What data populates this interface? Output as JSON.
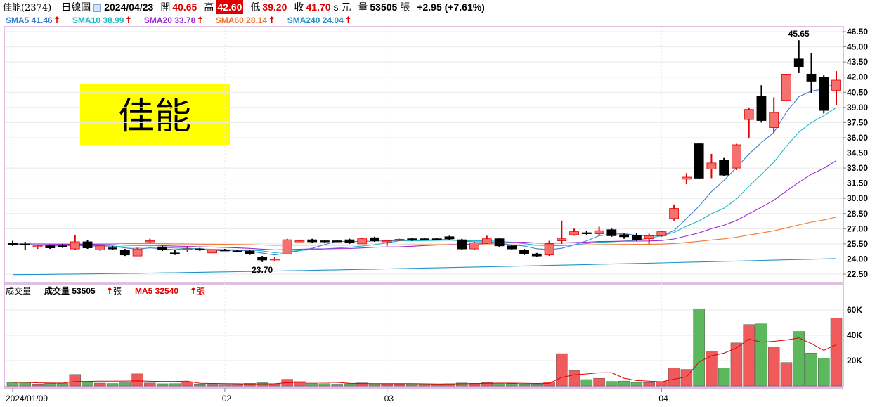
{
  "header": {
    "stock_name": "佳能(2374)",
    "chart_type_label": "日線圖",
    "date": "2024/04/23",
    "open_label": "開",
    "open": "40.65",
    "high_label": "高",
    "high": "42.60",
    "low_label": "低",
    "low": "39.20",
    "close_label": "收",
    "close": "41.70",
    "unit": "s 元",
    "volume_label": "量",
    "volume": "53505",
    "volume_unit": "張",
    "change": "+2.95 (+7.61%)"
  },
  "badge": {
    "text": "佳能",
    "bg": "#ffff00"
  },
  "ma_legend": [
    {
      "text": "SMA5 41.46",
      "color": "#3b7dd8"
    },
    {
      "text": "SMA10 38.99",
      "color": "#1cb8c4"
    },
    {
      "text": "SMA20 33.78",
      "color": "#9b2bd6"
    },
    {
      "text": "SMA60 28.14",
      "color": "#f07830"
    },
    {
      "text": "SMA240 24.04",
      "color": "#1f94c8"
    }
  ],
  "volume_legend": {
    "title": "成交量",
    "vol_text": "成交量 53505",
    "vol_unit": "張",
    "ma5_text": "MA5 32540",
    "ma5_unit": "張"
  },
  "annotations": {
    "peak": "45.65",
    "trough": "23.70"
  },
  "chart_data": {
    "type": "candlestick",
    "price_ticks": [
      "46.50",
      "45.00",
      "43.50",
      "42.00",
      "40.50",
      "39.00",
      "37.50",
      "36.00",
      "34.50",
      "33.00",
      "31.50",
      "30.00",
      "28.50",
      "27.00",
      "25.50",
      "24.00",
      "22.50"
    ],
    "volume_ticks": [
      "60K",
      "40K",
      "20K"
    ],
    "x_ticks": [
      {
        "label": "2024/01/09",
        "index": 0
      },
      {
        "label": "02",
        "index": 17
      },
      {
        "label": "03",
        "index": 30
      },
      {
        "label": "04",
        "index": 52
      }
    ],
    "candles": [
      {
        "o": 25.6,
        "h": 25.8,
        "l": 25.3,
        "c": 25.4,
        "v": 2800
      },
      {
        "o": 25.5,
        "h": 25.7,
        "l": 24.9,
        "c": 25.4,
        "v": 3000
      },
      {
        "o": 25.2,
        "h": 25.4,
        "l": 25.0,
        "c": 25.3,
        "v": 1500
      },
      {
        "o": 25.3,
        "h": 25.4,
        "l": 25.0,
        "c": 25.1,
        "v": 1800
      },
      {
        "o": 25.3,
        "h": 25.5,
        "l": 25.1,
        "c": 25.2,
        "v": 2000
      },
      {
        "o": 25.0,
        "h": 26.4,
        "l": 24.9,
        "c": 25.7,
        "v": 9000
      },
      {
        "o": 25.7,
        "h": 25.9,
        "l": 25.0,
        "c": 25.1,
        "v": 3500
      },
      {
        "o": 24.9,
        "h": 25.3,
        "l": 24.8,
        "c": 25.3,
        "v": 2200
      },
      {
        "o": 25.1,
        "h": 25.3,
        "l": 24.9,
        "c": 25.0,
        "v": 1900
      },
      {
        "o": 24.9,
        "h": 25.0,
        "l": 24.3,
        "c": 24.4,
        "v": 2500
      },
      {
        "o": 24.3,
        "h": 25.1,
        "l": 24.3,
        "c": 25.0,
        "v": 9500
      },
      {
        "o": 25.7,
        "h": 26.0,
        "l": 25.6,
        "c": 25.8,
        "v": 2300
      },
      {
        "o": 25.2,
        "h": 25.3,
        "l": 24.8,
        "c": 24.9,
        "v": 1700
      },
      {
        "o": 24.6,
        "h": 24.9,
        "l": 24.4,
        "c": 24.5,
        "v": 1800
      },
      {
        "o": 24.9,
        "h": 25.2,
        "l": 24.7,
        "c": 25.0,
        "v": 3200
      },
      {
        "o": 25.0,
        "h": 25.1,
        "l": 24.8,
        "c": 24.9,
        "v": 1500
      },
      {
        "o": 24.6,
        "h": 24.9,
        "l": 24.6,
        "c": 24.9,
        "v": 1400
      },
      {
        "o": 24.9,
        "h": 25.0,
        "l": 24.8,
        "c": 24.85,
        "v": 1200
      },
      {
        "o": 24.8,
        "h": 24.9,
        "l": 24.7,
        "c": 24.75,
        "v": 1300
      },
      {
        "o": 24.8,
        "h": 24.9,
        "l": 24.4,
        "c": 24.5,
        "v": 2000
      },
      {
        "o": 24.2,
        "h": 24.3,
        "l": 23.7,
        "c": 23.9,
        "v": 2500
      },
      {
        "o": 24.0,
        "h": 24.2,
        "l": 23.8,
        "c": 24.0,
        "v": 1700
      },
      {
        "o": 24.5,
        "h": 26.0,
        "l": 24.5,
        "c": 25.9,
        "v": 5200
      },
      {
        "o": 25.8,
        "h": 25.9,
        "l": 25.7,
        "c": 25.8,
        "v": 3400
      },
      {
        "o": 25.9,
        "h": 26.0,
        "l": 25.6,
        "c": 25.7,
        "v": 2100
      },
      {
        "o": 25.8,
        "h": 25.9,
        "l": 25.6,
        "c": 25.7,
        "v": 1800
      },
      {
        "o": 25.8,
        "h": 25.9,
        "l": 25.7,
        "c": 25.75,
        "v": 1400
      },
      {
        "o": 25.9,
        "h": 26.0,
        "l": 25.5,
        "c": 25.6,
        "v": 1700
      },
      {
        "o": 25.5,
        "h": 26.1,
        "l": 25.5,
        "c": 26.0,
        "v": 2400
      },
      {
        "o": 26.1,
        "h": 26.2,
        "l": 25.7,
        "c": 25.8,
        "v": 1800
      },
      {
        "o": 25.7,
        "h": 25.9,
        "l": 25.3,
        "c": 25.8,
        "v": 1600
      },
      {
        "o": 25.9,
        "h": 26.0,
        "l": 25.8,
        "c": 25.95,
        "v": 1500
      },
      {
        "o": 26.0,
        "h": 26.1,
        "l": 25.8,
        "c": 25.9,
        "v": 1800
      },
      {
        "o": 26.0,
        "h": 26.1,
        "l": 25.9,
        "c": 25.95,
        "v": 1500
      },
      {
        "o": 26.0,
        "h": 26.1,
        "l": 25.9,
        "c": 25.95,
        "v": 1400
      },
      {
        "o": 26.2,
        "h": 26.3,
        "l": 25.9,
        "c": 26.0,
        "v": 1700
      },
      {
        "o": 25.9,
        "h": 26.0,
        "l": 24.9,
        "c": 25.0,
        "v": 2300
      },
      {
        "o": 25.0,
        "h": 25.7,
        "l": 24.9,
        "c": 25.6,
        "v": 2100
      },
      {
        "o": 25.6,
        "h": 26.3,
        "l": 25.5,
        "c": 26.0,
        "v": 2700
      },
      {
        "o": 26.0,
        "h": 26.1,
        "l": 25.2,
        "c": 25.3,
        "v": 2200
      },
      {
        "o": 25.3,
        "h": 25.4,
        "l": 24.9,
        "c": 25.0,
        "v": 1800
      },
      {
        "o": 24.9,
        "h": 25.0,
        "l": 24.4,
        "c": 24.5,
        "v": 1600
      },
      {
        "o": 24.5,
        "h": 24.6,
        "l": 24.2,
        "c": 24.3,
        "v": 1500
      },
      {
        "o": 24.4,
        "h": 25.8,
        "l": 24.3,
        "c": 25.5,
        "v": 3200
      },
      {
        "o": 25.8,
        "h": 27.8,
        "l": 25.5,
        "c": 26.0,
        "v": 25500
      },
      {
        "o": 26.4,
        "h": 27.0,
        "l": 26.3,
        "c": 26.7,
        "v": 12000
      },
      {
        "o": 26.6,
        "h": 26.8,
        "l": 26.4,
        "c": 26.5,
        "v": 5000
      },
      {
        "o": 26.5,
        "h": 27.2,
        "l": 26.4,
        "c": 26.8,
        "v": 6000
      },
      {
        "o": 26.9,
        "h": 27.0,
        "l": 26.2,
        "c": 26.3,
        "v": 3500
      },
      {
        "o": 26.4,
        "h": 26.5,
        "l": 26.0,
        "c": 26.2,
        "v": 3800
      },
      {
        "o": 26.3,
        "h": 26.6,
        "l": 25.8,
        "c": 25.9,
        "v": 2800
      },
      {
        "o": 26.0,
        "h": 26.5,
        "l": 25.5,
        "c": 26.3,
        "v": 2600
      },
      {
        "o": 26.3,
        "h": 26.8,
        "l": 26.2,
        "c": 26.7,
        "v": 3500
      },
      {
        "o": 28.0,
        "h": 29.4,
        "l": 27.8,
        "c": 29.0,
        "v": 14000
      },
      {
        "o": 31.9,
        "h": 32.5,
        "l": 31.4,
        "c": 32.1,
        "v": 13000
      },
      {
        "o": 35.4,
        "h": 35.5,
        "l": 31.9,
        "c": 32.0,
        "v": 61000
      },
      {
        "o": 32.9,
        "h": 34.4,
        "l": 32.0,
        "c": 33.5,
        "v": 27500
      },
      {
        "o": 33.8,
        "h": 34.0,
        "l": 32.2,
        "c": 32.3,
        "v": 14000
      },
      {
        "o": 33.0,
        "h": 35.4,
        "l": 32.8,
        "c": 35.3,
        "v": 34000
      },
      {
        "o": 37.8,
        "h": 39.0,
        "l": 36.0,
        "c": 38.8,
        "v": 48500
      },
      {
        "o": 40.1,
        "h": 41.2,
        "l": 37.5,
        "c": 37.7,
        "v": 49000
      },
      {
        "o": 37.0,
        "h": 40.0,
        "l": 36.5,
        "c": 38.5,
        "v": 31000
      },
      {
        "o": 39.7,
        "h": 42.3,
        "l": 39.6,
        "c": 42.3,
        "v": 18500
      },
      {
        "o": 43.8,
        "h": 45.65,
        "l": 42.4,
        "c": 43.0,
        "v": 43000
      },
      {
        "o": 42.3,
        "h": 44.4,
        "l": 40.4,
        "c": 41.6,
        "v": 26000
      },
      {
        "o": 42.0,
        "h": 42.2,
        "l": 38.4,
        "c": 38.7,
        "v": 22000
      },
      {
        "o": 40.7,
        "h": 42.6,
        "l": 39.2,
        "c": 41.7,
        "v": 53505
      }
    ]
  },
  "colors": {
    "up": "#f5716f",
    "up_border": "#e00000",
    "down": "#000000",
    "vol_up": "#f05a5a",
    "vol_down": "#5cb85c",
    "sma5": "#3b7dd8",
    "sma10": "#1cb8c4",
    "sma20": "#9b2bd6",
    "sma60": "#f07830",
    "sma240": "#1f94c8",
    "vol_ma5": "#e00000",
    "panel_border": "#c080c0",
    "grid": "#e8e8e8"
  }
}
